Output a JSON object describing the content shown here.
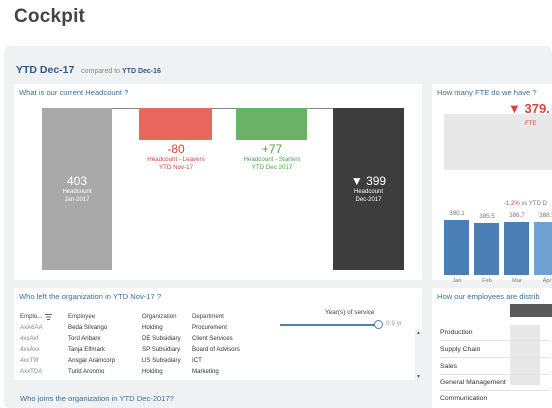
{
  "app": {
    "title": "Cockpit"
  },
  "header": {
    "period": "YTD Dec-17",
    "compared_prefix": "compared to",
    "compared_period": "YTD Dec-16"
  },
  "headcount": {
    "title": "What is our current Headcount ?",
    "start": {
      "value": "403",
      "label": "Headcount",
      "date": "Jan-2017"
    },
    "leavers": {
      "value": "-80",
      "label": "Headcount - Leavers",
      "date": "YTD Nov-17"
    },
    "starters": {
      "value": "+77",
      "label": "Headcount - Starters",
      "date": "YTD Dec 2017"
    },
    "end": {
      "value": "▼ 399",
      "label": "Headcount",
      "date": "Dec-2017"
    }
  },
  "fte": {
    "title": "How many FTE do we have ?",
    "big_value": "▼ 379.",
    "big_label": "FTE",
    "pct": "-1.2%",
    "pct_suffix": "vs YTD D",
    "bars": [
      {
        "value": "390.1",
        "month": "Jan",
        "level": 0.78
      },
      {
        "value": "385.5",
        "month": "Feb",
        "level": 0.74
      },
      {
        "value": "386.7",
        "month": "Mar",
        "level": 0.75
      },
      {
        "value": "388.2",
        "month": "Apr",
        "level": 0.76
      }
    ]
  },
  "leavers_table": {
    "title": "Who left the organization in YTD Nov-17 ?",
    "columns": [
      "Emplo...",
      "Employee",
      "Organization",
      "Department"
    ],
    "service_title": "Year(s) of service",
    "service_value": "0.9 yr",
    "rows": [
      [
        "AxA6AA",
        "Beda Silvango",
        "Holding",
        "Procurement"
      ],
      [
        "4xxAxf",
        "Tord Aribarx",
        "DE Subsidiary",
        "Client Services"
      ],
      [
        "4xxAxx",
        "Tanja Elfmark",
        "SP Subsidiary",
        "Board of Advisors"
      ],
      [
        "4xxT9f",
        "Ansgar Aramcorp",
        "US Subsidiary",
        "ICT"
      ],
      [
        "AxxTDA",
        "Turid Aronmo",
        "Holding",
        "Marketing"
      ]
    ]
  },
  "joins": {
    "title": "Who joins  the organization in YTD Dec-2017?"
  },
  "distribution": {
    "title": "How our employees are distrib",
    "items": [
      "Production",
      "Supply Chain",
      "Sales",
      "General Management",
      "Communication"
    ]
  },
  "colors": {
    "accent": "#3a6f9b",
    "leavers": "#e8685d",
    "starters": "#6ab265",
    "bar_blue": "#4a7fb5"
  }
}
